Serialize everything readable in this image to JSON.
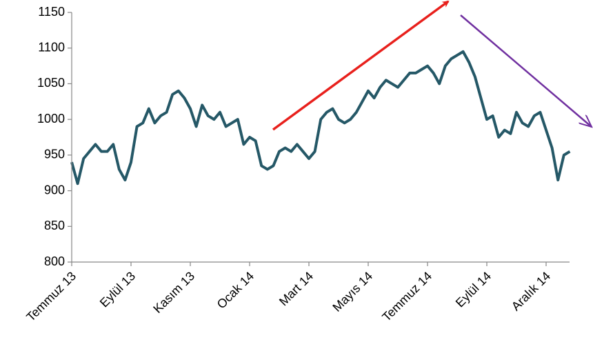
{
  "chart_data": {
    "type": "line",
    "categories": [
      "Temmuz 13",
      null,
      null,
      null,
      null,
      null,
      null,
      null,
      null,
      null,
      "Eylül 13",
      null,
      null,
      null,
      null,
      null,
      null,
      null,
      null,
      null,
      "Kasım 13",
      null,
      null,
      null,
      null,
      null,
      null,
      null,
      null,
      null,
      "Ocak 14",
      null,
      null,
      null,
      null,
      null,
      null,
      null,
      null,
      null,
      "Mart 14",
      null,
      null,
      null,
      null,
      null,
      null,
      null,
      null,
      null,
      "Mayıs 14",
      null,
      null,
      null,
      null,
      null,
      null,
      null,
      null,
      null,
      "Temmuz 14",
      null,
      null,
      null,
      null,
      null,
      null,
      null,
      null,
      null,
      "Eylül 14",
      null,
      null,
      null,
      null,
      null,
      null,
      null,
      null,
      null,
      "Aralık 14",
      null,
      null,
      null,
      null
    ],
    "values": [
      940,
      910,
      945,
      955,
      965,
      955,
      955,
      965,
      930,
      915,
      940,
      990,
      995,
      1015,
      995,
      1005,
      1010,
      1035,
      1040,
      1030,
      1015,
      990,
      1020,
      1005,
      1000,
      1010,
      990,
      995,
      1000,
      965,
      975,
      970,
      935,
      930,
      935,
      955,
      960,
      955,
      965,
      955,
      945,
      955,
      1000,
      1010,
      1015,
      1000,
      995,
      1000,
      1010,
      1025,
      1040,
      1030,
      1045,
      1055,
      1050,
      1045,
      1055,
      1065,
      1065,
      1070,
      1075,
      1065,
      1050,
      1075,
      1085,
      1090,
      1095,
      1080,
      1060,
      1030,
      1000,
      1005,
      975,
      985,
      980,
      1010,
      995,
      990,
      1005,
      1010,
      985,
      960,
      915,
      950,
      955
    ],
    "color": "#255867",
    "ylim": [
      800,
      1150
    ],
    "yticks": [
      800,
      850,
      900,
      950,
      1000,
      1050,
      1100,
      1150
    ],
    "grid": false
  }
}
